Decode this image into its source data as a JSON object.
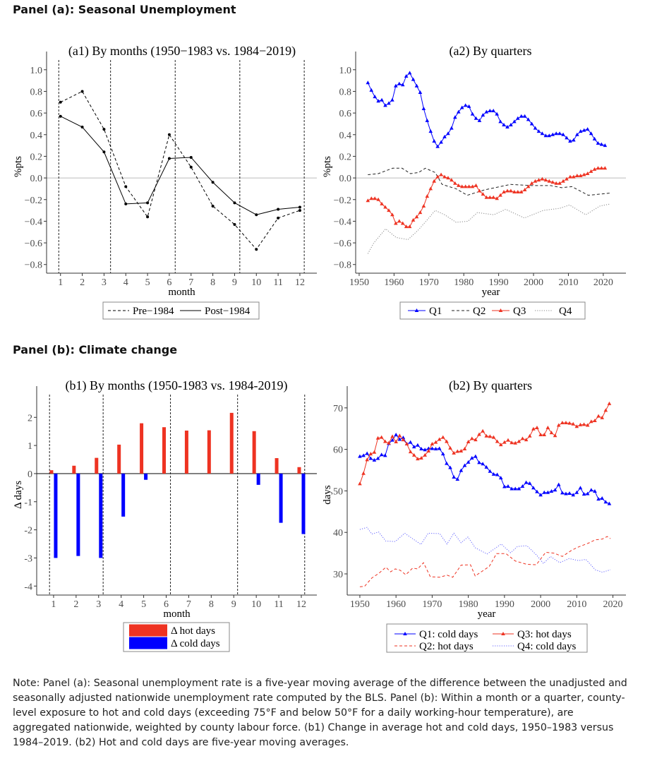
{
  "panels": [
    {
      "heading": "Panel (a): Seasonal Unemployment"
    },
    {
      "heading": "Panel (b): Climate change"
    }
  ],
  "note": "Note: Panel (a): Seasonal unemployment rate is a five-year moving average of the difference between the unadjusted and seasonally adjusted nationwide unemployment rate computed by the BLS. Panel (b): Within a month or a quarter, county-level exposure to hot and cold days (exceeding 75°F and below 50°F for a daily working-hour temperature), are aggregated nationwide, weighted by county labour force. (b1) Change in average hot and cold days, 1950–1983 versus 1984–2019. (b2) Hot and cold days are five-year moving averages.",
  "chart_data": [
    {
      "id": "a1",
      "type": "line",
      "title": "(a1) By months (1950−1983 vs. 1984−2019)",
      "xlabel": "month",
      "ylabel": "%pts",
      "xlim": [
        0.36,
        12.78
      ],
      "ylim": [
        -0.88,
        1.09
      ],
      "xticks": [
        1,
        2,
        3,
        4,
        5,
        6,
        7,
        8,
        9,
        10,
        11,
        12
      ],
      "xtick_labels": [
        "1",
        "2",
        "3",
        "4",
        "5",
        "6",
        "7",
        "8",
        "9",
        "10",
        "11",
        "12"
      ],
      "yticks": [
        -0.8,
        -0.6,
        -0.4,
        -0.2,
        0,
        0.2,
        0.4,
        0.6,
        0.8,
        1.0
      ],
      "ytick_labels": [
        "−0.8",
        "−0.6",
        "−0.4",
        "−0.2",
        "0.0",
        "0.2",
        "0.4",
        "0.6",
        "0.8",
        "1.0"
      ],
      "hline": 0,
      "vlines": [
        0.92,
        3.3,
        6.27,
        9.24,
        12.2
      ],
      "grid": false,
      "legend_position": "bottom",
      "series": [
        {
          "name": "Pre−1984",
          "color": "#000000",
          "dash": "dashed",
          "marker": "dot",
          "x": [
            1,
            2,
            3,
            4,
            5,
            6,
            7,
            8,
            9,
            10,
            11,
            12
          ],
          "values": [
            0.7,
            0.8,
            0.45,
            -0.08,
            -0.36,
            0.4,
            0.1,
            -0.26,
            -0.43,
            -0.66,
            -0.37,
            -0.3
          ]
        },
        {
          "name": "Post−1984",
          "color": "#000000",
          "dash": "solid",
          "marker": "dot",
          "x": [
            1,
            2,
            3,
            4,
            5,
            6,
            7,
            8,
            9,
            10,
            11,
            12
          ],
          "values": [
            0.57,
            0.47,
            0.24,
            -0.24,
            -0.23,
            0.18,
            0.19,
            -0.04,
            -0.23,
            -0.34,
            -0.29,
            -0.27
          ]
        }
      ]
    },
    {
      "id": "a2",
      "type": "line",
      "title": "(a2) By quarters",
      "xlabel": "year",
      "ylabel": "%pts",
      "xlim": [
        1949,
        2026.5
      ],
      "ylim": [
        -0.88,
        1.09
      ],
      "xticks": [
        1950,
        1960,
        1970,
        1980,
        1990,
        2000,
        2010,
        2020
      ],
      "xtick_labels": [
        "1950",
        "1960",
        "1970",
        "1980",
        "1990",
        "2000",
        "2010",
        "2020"
      ],
      "yticks": [
        -0.8,
        -0.6,
        -0.4,
        -0.2,
        0,
        0.2,
        0.4,
        0.6,
        0.8,
        1.0
      ],
      "ytick_labels": [
        "−0.8",
        "−0.6",
        "−0.4",
        "−0.2",
        "0.0",
        "0.2",
        "0.4",
        "0.6",
        "0.8",
        "1.0"
      ],
      "hline": 0,
      "vlines": [],
      "grid": false,
      "legend_position": "bottom",
      "series": [
        {
          "name": "Q1",
          "color": "#0000ff",
          "dash": "solid",
          "marker": "triangle",
          "x_start": 1952.5,
          "x_step": 1,
          "values": [
            0.88,
            0.81,
            0.75,
            0.71,
            0.72,
            0.67,
            0.69,
            0.72,
            0.85,
            0.87,
            0.86,
            0.94,
            0.97,
            0.91,
            0.85,
            0.79,
            0.64,
            0.53,
            0.43,
            0.34,
            0.29,
            0.33,
            0.38,
            0.41,
            0.46,
            0.56,
            0.61,
            0.65,
            0.67,
            0.66,
            0.59,
            0.55,
            0.53,
            0.58,
            0.61,
            0.62,
            0.62,
            0.59,
            0.52,
            0.49,
            0.47,
            0.49,
            0.52,
            0.55,
            0.57,
            0.57,
            0.54,
            0.5,
            0.46,
            0.43,
            0.41,
            0.39,
            0.39,
            0.4,
            0.41,
            0.41,
            0.4,
            0.37,
            0.34,
            0.35,
            0.4,
            0.43,
            0.44,
            0.45,
            0.41,
            0.36,
            0.32,
            0.31,
            0.3
          ]
        },
        {
          "name": "Q2",
          "color": "#222222",
          "dash": "dashed",
          "marker": "none",
          "x": [
            1952.5,
            1955.5,
            1959.6,
            1962.3,
            1964.7,
            1967,
            1969,
            1971.8,
            1973.8,
            1977.8,
            1981,
            1986,
            1993.4,
            1999.5,
            2004.9,
            2008,
            2011,
            2015.7,
            2022
          ],
          "values": [
            0.03,
            0.04,
            0.09,
            0.09,
            0.04,
            0.05,
            0.09,
            0.05,
            -0.06,
            -0.1,
            -0.16,
            -0.11,
            -0.06,
            -0.07,
            -0.07,
            -0.09,
            -0.08,
            -0.16,
            -0.14
          ]
        },
        {
          "name": "Q3",
          "color": "#ee3322",
          "dash": "solid",
          "marker": "triangle",
          "x_start": 1952.5,
          "x_step": 1,
          "values": [
            -0.21,
            -0.19,
            -0.19,
            -0.2,
            -0.24,
            -0.27,
            -0.3,
            -0.34,
            -0.42,
            -0.4,
            -0.42,
            -0.45,
            -0.45,
            -0.39,
            -0.36,
            -0.32,
            -0.26,
            -0.17,
            -0.1,
            -0.03,
            0.01,
            0.03,
            0.01,
            0.0,
            -0.02,
            -0.05,
            -0.07,
            -0.08,
            -0.08,
            -0.08,
            -0.08,
            -0.07,
            -0.12,
            -0.15,
            -0.18,
            -0.18,
            -0.18,
            -0.19,
            -0.16,
            -0.13,
            -0.12,
            -0.12,
            -0.13,
            -0.13,
            -0.13,
            -0.11,
            -0.08,
            -0.05,
            -0.03,
            -0.02,
            -0.01,
            -0.02,
            -0.03,
            -0.04,
            -0.05,
            -0.05,
            -0.03,
            -0.01,
            0.01,
            0.01,
            0.02,
            0.02,
            0.03,
            0.04,
            0.06,
            0.08,
            0.09,
            0.09,
            0.09
          ]
        },
        {
          "name": "Q4",
          "color": "#888888",
          "dash": "dotted",
          "marker": "none",
          "x": [
            1952.5,
            1954.2,
            1957.6,
            1960.6,
            1964,
            1967,
            1969.7,
            1971.8,
            1974.5,
            1977.8,
            1981.2,
            1983.9,
            1988.6,
            1992,
            1997.4,
            2002.8,
            2007.6,
            2010.3,
            2015,
            2019,
            2022
          ],
          "values": [
            -0.7,
            -0.6,
            -0.47,
            -0.55,
            -0.57,
            -0.48,
            -0.38,
            -0.3,
            -0.34,
            -0.41,
            -0.4,
            -0.32,
            -0.34,
            -0.29,
            -0.37,
            -0.3,
            -0.28,
            -0.25,
            -0.34,
            -0.26,
            -0.24
          ]
        }
      ]
    },
    {
      "id": "b1",
      "type": "bar",
      "title": "(b1) By months (1950-1983 vs. 1984-2019)",
      "xlabel": "month",
      "ylabel": "Δ days",
      "xlim": [
        0.25,
        12.69
      ],
      "ylim": [
        -4.32,
        2.81
      ],
      "xticks": [
        1,
        2,
        3,
        4,
        5,
        6,
        7,
        8,
        9,
        10,
        11,
        12
      ],
      "xtick_labels": [
        "1",
        "2",
        "3",
        "4",
        "5",
        "6",
        "7",
        "8",
        "9",
        "10",
        "11",
        "12"
      ],
      "yticks": [
        -4,
        -3,
        -2,
        -1,
        0,
        1,
        2
      ],
      "ytick_labels": [
        "-4",
        "-3",
        "-2",
        "-1",
        "0",
        "1",
        "2"
      ],
      "hline": 0,
      "vlines": [
        0.82,
        3.2,
        6.19,
        9.17,
        12.15
      ],
      "grid": false,
      "legend_position": "bottom",
      "categories": [
        1,
        2,
        3,
        4,
        5,
        6,
        7,
        8,
        9,
        10,
        11,
        12
      ],
      "series": [
        {
          "name": "Δ hot days",
          "color": "#ee3322",
          "values": [
            0.12,
            0.28,
            0.56,
            1.03,
            1.79,
            1.65,
            1.53,
            1.54,
            2.16,
            1.51,
            0.55,
            0.23
          ]
        },
        {
          "name": "Δ cold days",
          "color": "#0000ff",
          "values": [
            -3.0,
            -2.93,
            -3.0,
            -1.53,
            -0.22,
            0,
            0,
            0,
            0,
            -0.4,
            -1.75,
            -2.15
          ]
        }
      ]
    },
    {
      "id": "b2",
      "type": "line",
      "title": "(b2) By quarters",
      "xlabel": "year",
      "ylabel": "days",
      "xlim": [
        1946.5,
        2023.6
      ],
      "ylim": [
        24.9,
        73.2
      ],
      "xticks": [
        1950,
        1960,
        1970,
        1980,
        1990,
        2000,
        2010,
        2020
      ],
      "xtick_labels": [
        "1950",
        "1960",
        "1970",
        "1980",
        "1990",
        "2000",
        "2010",
        "2020"
      ],
      "yticks": [
        30,
        40,
        50,
        60,
        70
      ],
      "ytick_labels": [
        "30",
        "40",
        "50",
        "60",
        "70"
      ],
      "vlines": [],
      "grid": false,
      "legend_position": "bottom",
      "series": [
        {
          "name": "Q1: cold days",
          "color": "#0000ff",
          "dash": "solid",
          "marker": "triangle",
          "x_start": 1950,
          "x_step": 1,
          "values": [
            58.3,
            58.5,
            59,
            57.8,
            57.4,
            57.8,
            58.7,
            58.5,
            61.4,
            62.2,
            63.5,
            62.4,
            62.8,
            61.3,
            61.7,
            60.6,
            61,
            60.1,
            59.9,
            60.2,
            60.2,
            60.1,
            60.2,
            58.9,
            56.6,
            55.6,
            53.3,
            52.8,
            54.9,
            56.1,
            56.9,
            57.9,
            58.3,
            56.8,
            56.5,
            55.7,
            54.7,
            54,
            53.9,
            53.1,
            51,
            51.1,
            50.5,
            50.5,
            50.5,
            51.1,
            52,
            51.8,
            50.7,
            49.8,
            49,
            49.6,
            49.6,
            49.9,
            50.2,
            51.5,
            49.5,
            49.3,
            49.4,
            49,
            49.6,
            50.7,
            49.2,
            49.3,
            50.2,
            49.9,
            48,
            48.2,
            47.3,
            46.9
          ]
        },
        {
          "name": "Q3: hot days",
          "color": "#ee3322",
          "dash": "solid",
          "marker": "triangle",
          "x_start": 1950,
          "x_step": 1,
          "values": [
            51.7,
            54.2,
            57.5,
            58.9,
            59.3,
            62.7,
            62.9,
            61.9,
            61.5,
            63.1,
            61.8,
            63.3,
            62.3,
            61.3,
            59.4,
            58.6,
            57.7,
            57.9,
            58.6,
            59.6,
            61.3,
            61.7,
            62.4,
            62.9,
            61.9,
            60.3,
            59.1,
            59.5,
            59.6,
            60.1,
            61.8,
            62.6,
            62.3,
            63.6,
            64.4,
            63.2,
            63.1,
            62.9,
            61.9,
            61.1,
            61.7,
            62.2,
            61.6,
            61.5,
            61.9,
            62.6,
            62.3,
            63.2,
            64.9,
            65.2,
            63.5,
            63.5,
            65.2,
            64,
            63.3,
            65.8,
            66.4,
            66.4,
            66.3,
            66.1,
            65.5,
            65.9,
            66,
            65.8,
            66.7,
            66.9,
            68,
            67.6,
            69.4,
            71
          ]
        },
        {
          "name": "Q2: hot days",
          "color": "#ee3322",
          "dash": "dashed",
          "marker": "none",
          "x": [
            1950,
            1951.3,
            1953.3,
            1955.2,
            1957.2,
            1958.5,
            1959.8,
            1961.1,
            1962.7,
            1964.6,
            1966,
            1967.6,
            1969.5,
            1972.1,
            1974.1,
            1975.7,
            1978,
            1980.6,
            1981.9,
            1985.8,
            1987.8,
            1990.4,
            1993,
            1996.2,
            1998.8,
            2001.4,
            2003.7,
            2006,
            2008.6,
            2010.5,
            2013.2,
            2015.1,
            2017.1,
            2018.4,
            2019.3
          ],
          "values": [
            26.9,
            27,
            29,
            30.1,
            31.6,
            30.5,
            31.2,
            30.9,
            29.8,
            31.4,
            31.2,
            32.7,
            29.3,
            29.2,
            29.7,
            29.2,
            32.1,
            32.2,
            29.5,
            31.8,
            34.9,
            34.9,
            33.1,
            32.3,
            32.2,
            35.2,
            35,
            34.2,
            35.7,
            36.5,
            37.4,
            38.2,
            38.4,
            39,
            38.5
          ]
        },
        {
          "name": "Q4: cold days",
          "color": "#6666ff",
          "dash": "dotted",
          "marker": "none",
          "x": [
            1950,
            1952,
            1953.3,
            1955.2,
            1957.2,
            1959.8,
            1962.4,
            1966.9,
            1968.9,
            1972.1,
            1974.1,
            1976,
            1978,
            1979.9,
            1981.9,
            1985.2,
            1989.1,
            1991.7,
            1993.6,
            1996.2,
            1998.8,
            2000.8,
            2002.7,
            2005.3,
            2007.9,
            2010.5,
            2012.5,
            2015.1,
            2017.1,
            2019.3
          ],
          "values": [
            40.7,
            41.2,
            39.6,
            40.1,
            37.9,
            37.8,
            39.8,
            37.1,
            39.8,
            39.7,
            37.2,
            39.8,
            37.5,
            38.9,
            36.3,
            34.8,
            37.2,
            35.1,
            36.6,
            36.8,
            34.6,
            32.5,
            34.2,
            32.7,
            33.7,
            33.2,
            33.5,
            31,
            30.4,
            31
          ]
        }
      ]
    }
  ]
}
